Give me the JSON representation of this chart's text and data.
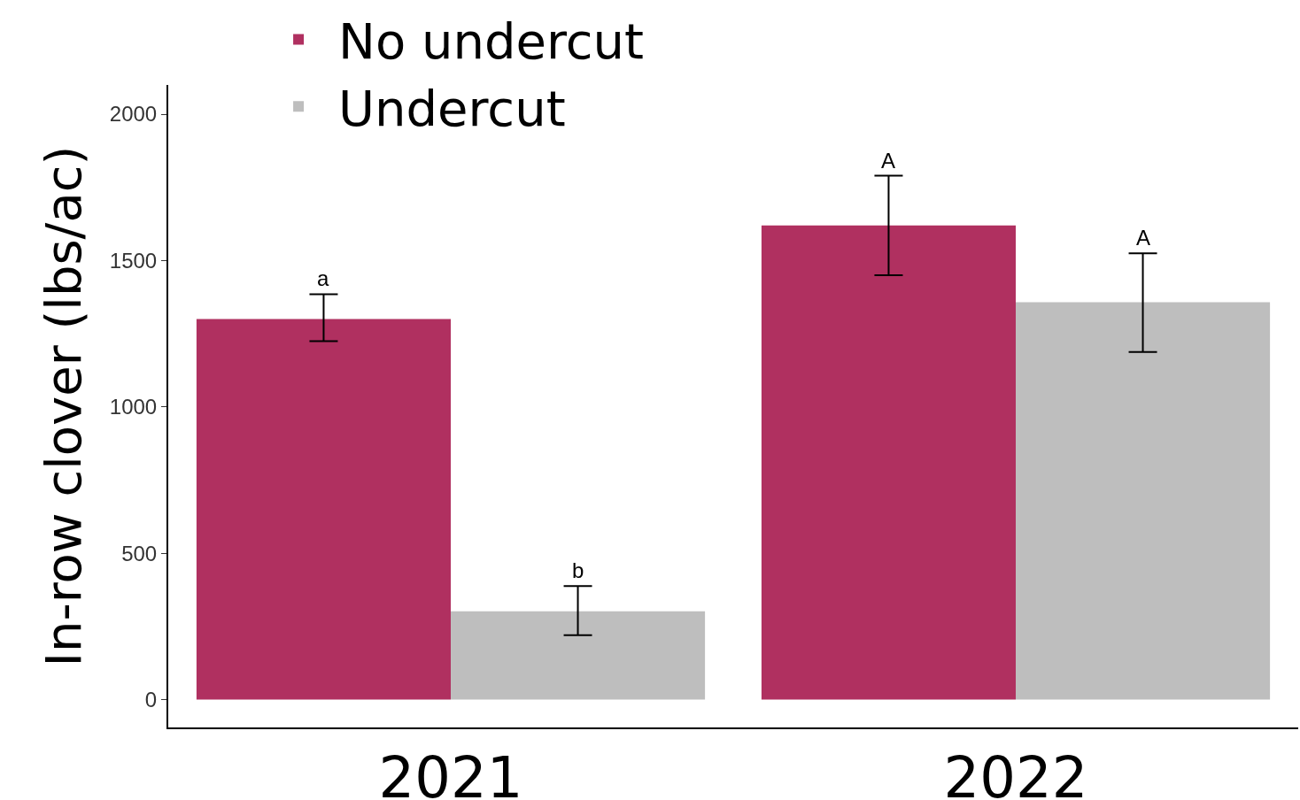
{
  "chart_data": {
    "type": "bar",
    "ylabel": "In-row clover (lbs/ac)",
    "categories": [
      "2021",
      "2022"
    ],
    "series": [
      {
        "name": "No undercut",
        "color": "#b03060",
        "values": [
          1300,
          1620
        ],
        "errors": [
          [
            1225,
            1385
          ],
          [
            1450,
            1790
          ]
        ]
      },
      {
        "name": "Undercut",
        "color": "#bebebe",
        "values": [
          302,
          1358
        ],
        "errors": [
          [
            220,
            388
          ],
          [
            1188,
            1525
          ]
        ]
      }
    ],
    "ylim": [
      -95,
      2100
    ],
    "yticks": [
      0,
      500,
      1000,
      1500,
      2000
    ],
    "grid": false,
    "legend": "top left",
    "annotations": [
      "a",
      "b",
      "A",
      "A"
    ]
  }
}
